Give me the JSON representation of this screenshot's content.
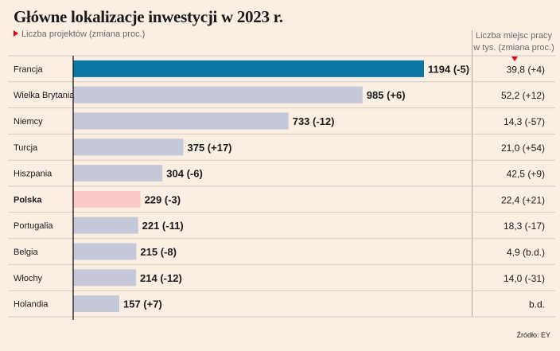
{
  "chart_data": {
    "type": "bar",
    "orientation": "horizontal",
    "title": "Główne lokalizacje inwestycji w 2023 r.",
    "subtitle": "Liczba projektów (zmiana proc.)",
    "table_header": "Liczba miejsc pracy w tys. (zmiana proc.)",
    "categories": [
      "Francja",
      "Wielka Brytania",
      "Niemcy",
      "Turcja",
      "Hiszpania",
      "Polska",
      "Portugalia",
      "Belgia",
      "Włochy",
      "Holandia"
    ],
    "values": [
      1194,
      985,
      733,
      375,
      304,
      229,
      221,
      215,
      214,
      157
    ],
    "value_labels": [
      "1194 (-5)",
      "985 (+6)",
      "733 (-12)",
      "375 (+17)",
      "304 (-6)",
      "229 (-3)",
      "221 (-11)",
      "215 (-8)",
      "214 (-12)",
      "157 (+7)"
    ],
    "jobs_labels": [
      "39,8 (+4)",
      "52,2 (+12)",
      "14,3 (-57)",
      "21,0 (+54)",
      "42,5 (+9)",
      "22,4 (+21)",
      "18,3 (-17)",
      "4,9 (b.d.)",
      "14,0 (-31)",
      "b.d."
    ],
    "highlight_bold": "Polska",
    "xlim": [
      0,
      1194
    ],
    "colors": {
      "default": "#c5c8d9",
      "first": "#0a76a3",
      "poland": "#fcc9c9",
      "accent": "#e3001b"
    }
  },
  "source": "Źródło: EY"
}
